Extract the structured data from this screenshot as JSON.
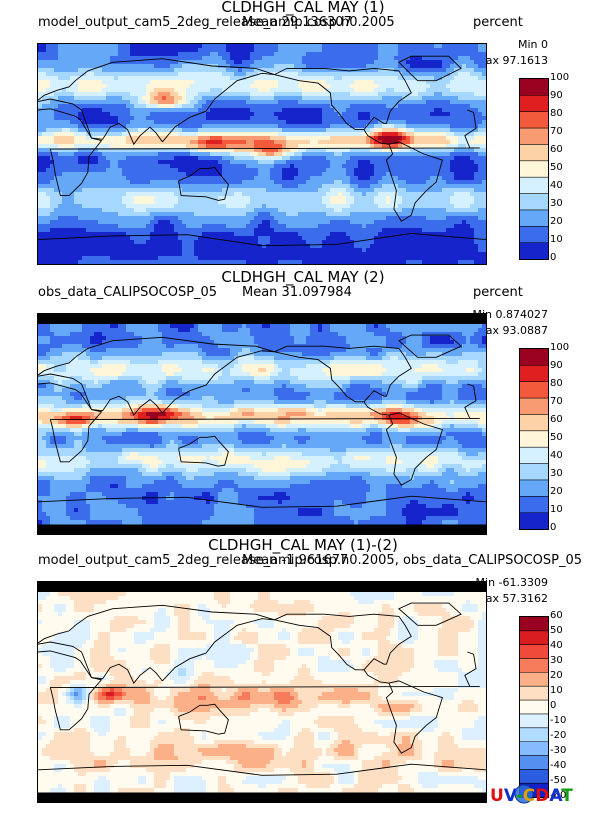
{
  "panels": [
    {
      "title": "CLDHGH_CAL MAY (1)",
      "source": "model_output_cam5_2deg_release_amip.cosp.h0.2005",
      "mean": "Mean 29.136307",
      "units": "percent",
      "min": "Min 0",
      "max": "Max 97.1613",
      "colorbar": {
        "ticks": [
          "100",
          "90",
          "80",
          "70",
          "60",
          "50",
          "40",
          "30",
          "20",
          "10",
          "0"
        ],
        "colors": [
          "#9a0020",
          "#e02020",
          "#f35a3c",
          "#f89a72",
          "#fcd2a6",
          "#fff6da",
          "#d5f0ff",
          "#a6d7ff",
          "#66a8f8",
          "#3a6cec",
          "#1624cc"
        ]
      },
      "field": "model"
    },
    {
      "title": "CLDHGH_CAL MAY (2)",
      "source": "obs_data_CALIPSOCOSP_05",
      "mean": "Mean 31.097984",
      "units": "percent",
      "min": "Min 0.874027",
      "max": "Max 93.0887",
      "colorbar": {
        "ticks": [
          "100",
          "90",
          "80",
          "70",
          "60",
          "50",
          "40",
          "30",
          "20",
          "10",
          "0"
        ],
        "colors": [
          "#9a0020",
          "#e02020",
          "#f35a3c",
          "#f89a72",
          "#fcd2a6",
          "#fff6da",
          "#d5f0ff",
          "#a6d7ff",
          "#66a8f8",
          "#3a6cec",
          "#1624cc"
        ]
      },
      "field": "obs"
    },
    {
      "title": "CLDHGH_CAL MAY (1)-(2)",
      "source": "model_output_cam5_2deg_release_amip.cosp.h0.2005, obs_data_CALIPSOCOSP_05",
      "mean": "Mean -1.961677",
      "units": "",
      "min": "Min -61.3309",
      "max": "Max 57.3162",
      "colorbar": {
        "ticks": [
          "60",
          "50",
          "40",
          "30",
          "20",
          "10",
          "0",
          "-10",
          "-20",
          "-30",
          "-40",
          "-50",
          "-60"
        ],
        "colors": [
          "#9a0020",
          "#d81c20",
          "#f04a3a",
          "#f77c5c",
          "#fbb088",
          "#fde0c4",
          "#fffbee",
          "#dcf0ff",
          "#b2dcff",
          "#84bcff",
          "#5490f0",
          "#2c5ce0",
          "#1420c8"
        ]
      },
      "field": "diff"
    }
  ],
  "logo": {
    "text": "UV-CDAT",
    "colors": [
      "#e01010",
      "#1030d0",
      "#10a010",
      "#e0a000"
    ]
  },
  "chart_data": {
    "type": "heatmap",
    "variable": "CLDHGH_CAL",
    "month": "MAY",
    "maps": [
      {
        "title": "CLDHGH_CAL MAY (1)",
        "units": "percent",
        "min": 0,
        "max": 97.1613,
        "mean": 29.136307,
        "levels": [
          0,
          10,
          20,
          30,
          40,
          50,
          60,
          70,
          80,
          90,
          100
        ]
      },
      {
        "title": "CLDHGH_CAL MAY (2)",
        "units": "percent",
        "min": 0.874027,
        "max": 93.0887,
        "mean": 31.097984,
        "levels": [
          0,
          10,
          20,
          30,
          40,
          50,
          60,
          70,
          80,
          90,
          100
        ]
      },
      {
        "title": "CLDHGH_CAL MAY (1)-(2)",
        "units": "",
        "min": -61.3309,
        "max": 57.3162,
        "mean": -1.961677,
        "levels": [
          -60,
          -50,
          -40,
          -30,
          -20,
          -10,
          0,
          10,
          20,
          30,
          40,
          50,
          60
        ]
      }
    ]
  }
}
